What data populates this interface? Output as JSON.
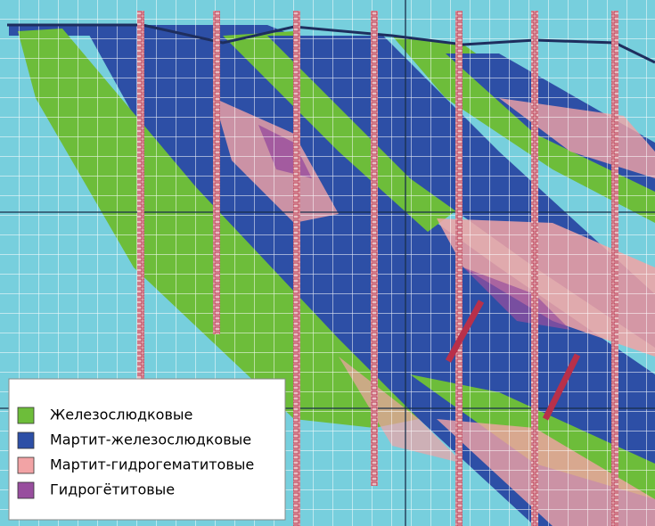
{
  "legend": {
    "items": [
      {
        "label": "Железослюдковые",
        "color": "#6dbd3a"
      },
      {
        "label": "Мартит-железослюдковые",
        "color": "#2d4fa6"
      },
      {
        "label": "Мартит-гидрогематитовые",
        "color": "#f2a3a5"
      },
      {
        "label": "Гидрогётитовые",
        "color": "#984e9e"
      }
    ]
  }
}
